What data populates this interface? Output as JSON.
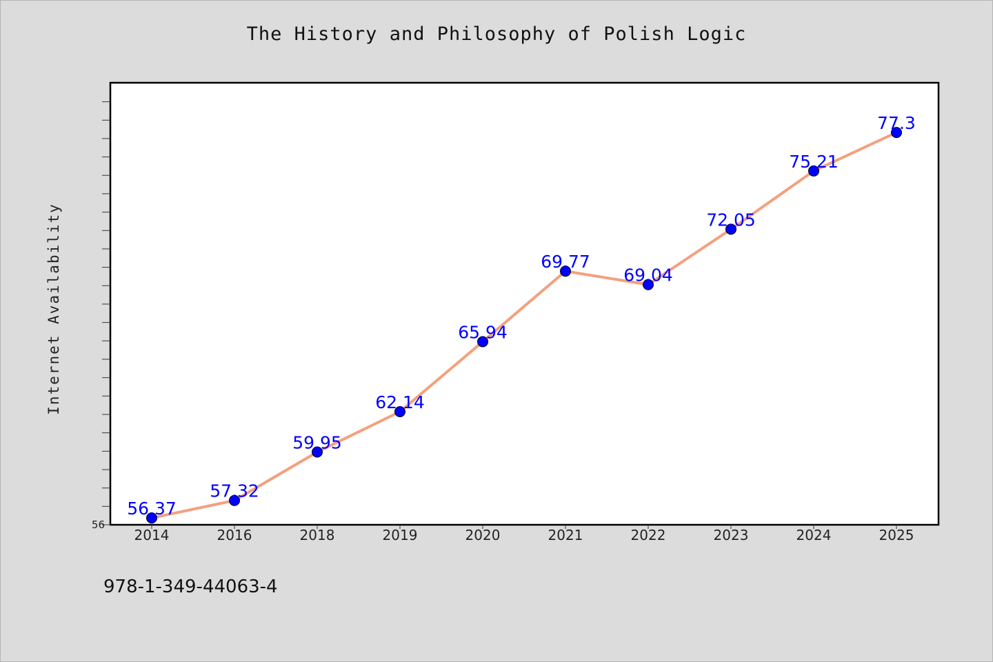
{
  "chart_data": {
    "type": "line",
    "title": "The History and Philosophy of Polish Logic",
    "ylabel": "Internet Availability",
    "xlabel": "",
    "categories": [
      "2014",
      "2016",
      "2018",
      "2019",
      "2020",
      "2021",
      "2022",
      "2023",
      "2024",
      "2025"
    ],
    "series": [
      {
        "values": [
          56.37,
          57.32,
          59.95,
          62.14,
          65.94,
          69.77,
          69.04,
          72.05,
          75.21,
          77.3
        ],
        "labels": [
          "56.37",
          "57.32",
          "59.95",
          "62.14",
          "65.94",
          "69.77",
          "69.04",
          "72.05",
          "75.21",
          "77.3"
        ]
      }
    ],
    "ylim": [
      56,
      80
    ],
    "y_tick_label": "56",
    "line_color": "#f4a07e",
    "marker_color": "#0000ff",
    "label_color": "#0000ff",
    "grid": false
  },
  "footer": {
    "code": "978-1-349-44063-4"
  }
}
